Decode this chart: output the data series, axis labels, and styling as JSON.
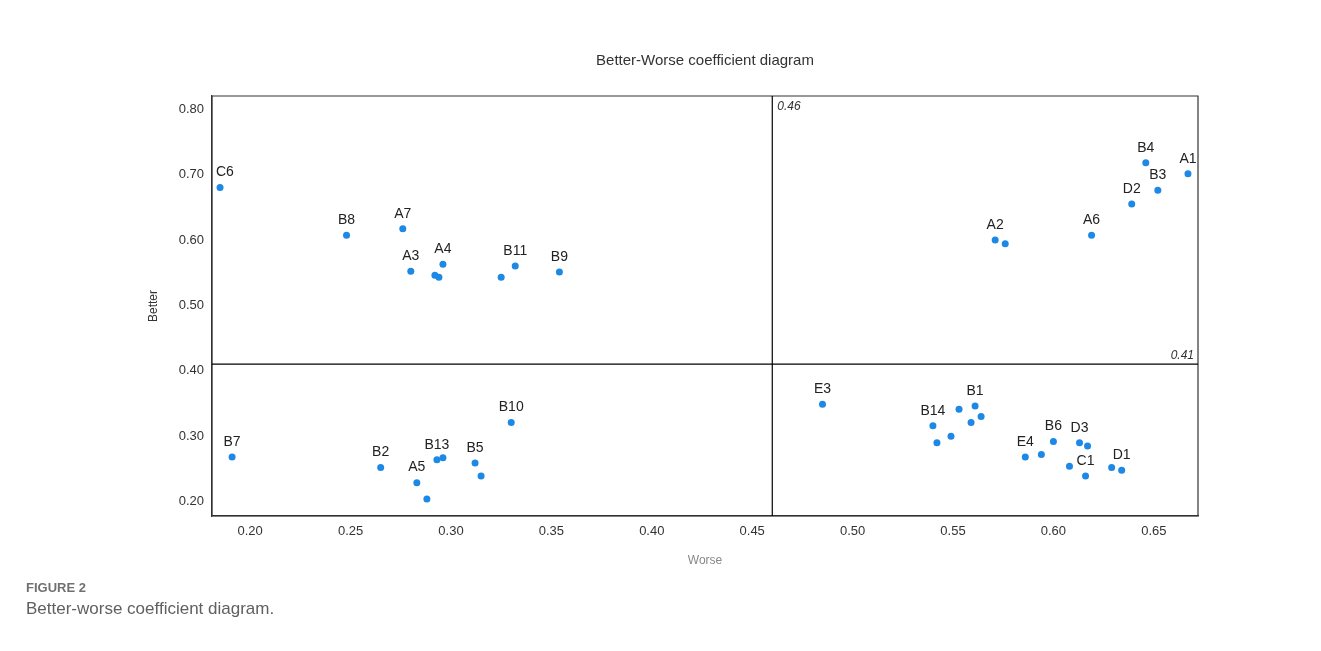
{
  "chart_data": {
    "type": "scatter",
    "title": "Better-Worse coefficient diagram",
    "xlabel": "Worse",
    "ylabel": "Better",
    "xlim": [
      0.181,
      0.672
    ],
    "ylim": [
      0.178,
      0.82
    ],
    "xticks": [
      {
        "value": 0.2,
        "label": "0.20"
      },
      {
        "value": 0.25,
        "label": "0.25"
      },
      {
        "value": 0.3,
        "label": "0.30"
      },
      {
        "value": 0.35,
        "label": "0.35"
      },
      {
        "value": 0.4,
        "label": "0.40"
      },
      {
        "value": 0.45,
        "label": "0.45"
      },
      {
        "value": 0.5,
        "label": "0.50"
      },
      {
        "value": 0.55,
        "label": "0.55"
      },
      {
        "value": 0.6,
        "label": "0.60"
      },
      {
        "value": 0.65,
        "label": "0.65"
      }
    ],
    "yticks": [
      {
        "value": 0.2,
        "label": "0.20"
      },
      {
        "value": 0.3,
        "label": "0.30"
      },
      {
        "value": 0.4,
        "label": "0.40"
      },
      {
        "value": 0.5,
        "label": "0.50"
      },
      {
        "value": 0.6,
        "label": "0.60"
      },
      {
        "value": 0.7,
        "label": "0.70"
      },
      {
        "value": 0.8,
        "label": "0.80"
      }
    ],
    "grid": false,
    "legend": false,
    "marker": "circle",
    "series": [
      {
        "color": "#1e88e5",
        "x": [
          0.185,
          0.248,
          0.276,
          0.28,
          0.292,
          0.294,
          0.296,
          0.325,
          0.332,
          0.354,
          0.571,
          0.576,
          0.619,
          0.639,
          0.646,
          0.652,
          0.667,
          0.191,
          0.265,
          0.283,
          0.288,
          0.293,
          0.296,
          0.312,
          0.315,
          0.33,
          0.485,
          0.54,
          0.542,
          0.549,
          0.553,
          0.561,
          0.559,
          0.564,
          0.586,
          0.594,
          0.6,
          0.613,
          0.617,
          0.608,
          0.616,
          0.629,
          0.634
        ],
        "values": [
          0.68,
          0.607,
          0.617,
          0.552,
          0.546,
          0.543,
          0.563,
          0.543,
          0.56,
          0.551,
          0.6,
          0.594,
          0.607,
          0.655,
          0.718,
          0.676,
          0.701,
          0.268,
          0.252,
          0.229,
          0.204,
          0.264,
          0.267,
          0.259,
          0.239,
          0.321,
          0.349,
          0.316,
          0.29,
          0.3,
          0.341,
          0.346,
          0.321,
          0.33,
          0.268,
          0.272,
          0.292,
          0.29,
          0.285,
          0.254,
          0.239,
          0.252,
          0.248
        ]
      }
    ],
    "ref_lines": [
      {
        "axis": "x",
        "value": 0.46,
        "label": "0.46",
        "color": "#000000"
      },
      {
        "axis": "y",
        "value": 0.41,
        "label": "0.41",
        "color": "#000000"
      }
    ],
    "annotations": [
      {
        "text": "C6",
        "x": 0.185,
        "y": 0.68
      },
      {
        "text": "B8",
        "x": 0.248,
        "y": 0.607
      },
      {
        "text": "A7",
        "x": 0.276,
        "y": 0.617
      },
      {
        "text": "A3",
        "x": 0.28,
        "y": 0.552
      },
      {
        "text": "A4",
        "x": 0.296,
        "y": 0.563
      },
      {
        "text": "B11",
        "x": 0.332,
        "y": 0.56
      },
      {
        "text": "B9",
        "x": 0.354,
        "y": 0.551
      },
      {
        "text": "A2",
        "x": 0.571,
        "y": 0.6
      },
      {
        "text": "A6",
        "x": 0.619,
        "y": 0.607
      },
      {
        "text": "D2",
        "x": 0.639,
        "y": 0.655
      },
      {
        "text": "B4",
        "x": 0.646,
        "y": 0.718
      },
      {
        "text": "B3",
        "x": 0.652,
        "y": 0.676
      },
      {
        "text": "A1",
        "x": 0.667,
        "y": 0.701
      },
      {
        "text": "B7",
        "x": 0.191,
        "y": 0.268
      },
      {
        "text": "B2",
        "x": 0.265,
        "y": 0.252
      },
      {
        "text": "A5",
        "x": 0.283,
        "y": 0.229
      },
      {
        "text": "B13",
        "x": 0.293,
        "y": 0.264
      },
      {
        "text": "B5",
        "x": 0.312,
        "y": 0.259
      },
      {
        "text": "B10",
        "x": 0.33,
        "y": 0.321
      },
      {
        "text": "E3",
        "x": 0.485,
        "y": 0.349
      },
      {
        "text": "B14",
        "x": 0.54,
        "y": 0.316
      },
      {
        "text": "B1",
        "x": 0.561,
        "y": 0.346
      },
      {
        "text": "E4",
        "x": 0.586,
        "y": 0.268
      },
      {
        "text": "B6",
        "x": 0.6,
        "y": 0.292
      },
      {
        "text": "D3",
        "x": 0.613,
        "y": 0.29
      },
      {
        "text": "C1",
        "x": 0.616,
        "y": 0.239
      },
      {
        "text": "D1",
        "x": 0.634,
        "y": 0.248
      },
      "FIGURE 2",
      "Better-worse coefficient diagram."
    ]
  }
}
